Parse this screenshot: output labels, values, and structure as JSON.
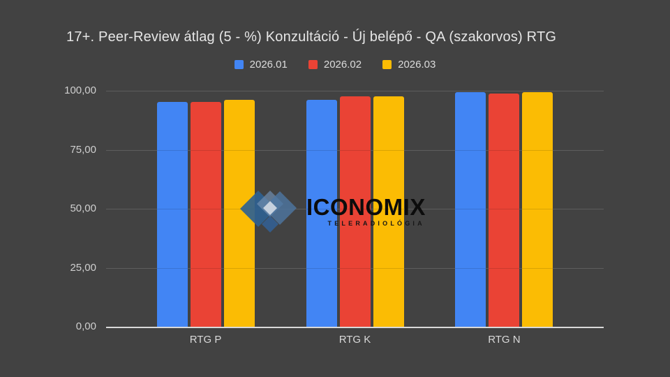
{
  "title": "17+. Peer-Review átlag (5 - %) Konzultáció - Új belépő - QA (szakorvos) RTG",
  "colors": {
    "background": "#424242",
    "gridline": "#5f5f5f",
    "axis_line": "#d9d9d9",
    "title_text": "#e6e6e6",
    "tick_text": "#cfcfcf"
  },
  "watermark": {
    "brand": "ICONOMIX",
    "subtitle": "TELERADIOLÓGIA",
    "icon": "diamond-cluster-icon"
  },
  "chart_data": {
    "type": "bar",
    "title": "17+. Peer-Review átlag (5 - %) Konzultáció - Új belépő - QA (szakorvos) RTG",
    "categories": [
      "RTG P",
      "RTG K",
      "RTG N"
    ],
    "series": [
      {
        "name": "2026.01",
        "color": "#4285f4",
        "values": [
          95.3,
          96.1,
          99.4
        ]
      },
      {
        "name": "2026.02",
        "color": "#ea4335",
        "values": [
          95.3,
          97.7,
          98.9
        ]
      },
      {
        "name": "2026.03",
        "color": "#fbbc04",
        "values": [
          96.2,
          97.7,
          99.4
        ]
      }
    ],
    "xlabel": "",
    "ylabel": "",
    "ylim": [
      0,
      100
    ],
    "yticks": [
      {
        "value": 0,
        "label": "0,00"
      },
      {
        "value": 25,
        "label": "25,00"
      },
      {
        "value": 50,
        "label": "50,00"
      },
      {
        "value": 75,
        "label": "75,00"
      },
      {
        "value": 100,
        "label": "100,00"
      }
    ],
    "grid": true,
    "legend_position": "top",
    "group_centers_pct": [
      20,
      50,
      80
    ]
  }
}
